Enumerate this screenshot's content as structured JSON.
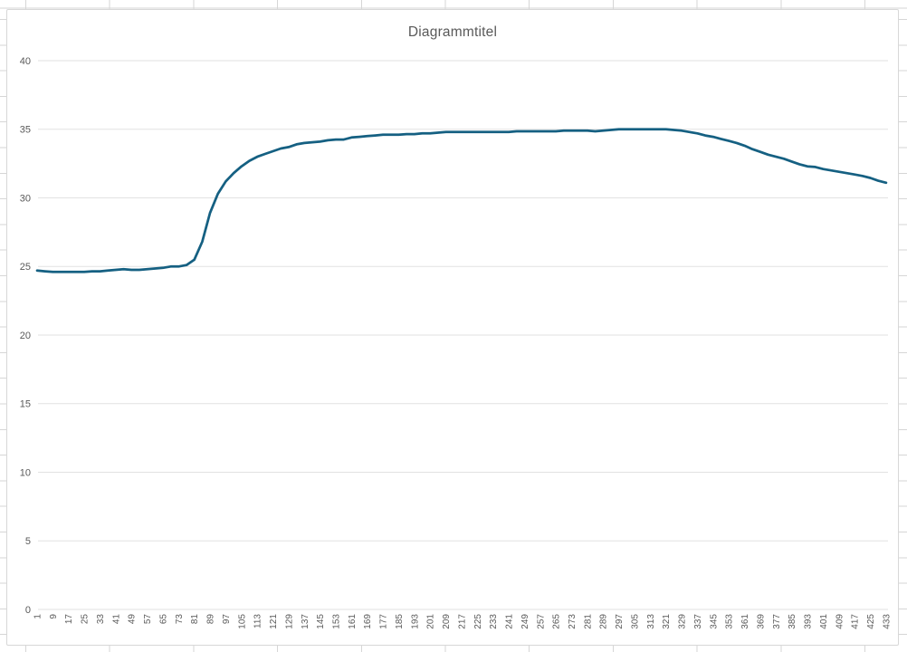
{
  "chart_title": "Diagrammtitel",
  "colors": {
    "line": "#156082",
    "gridline": "#e2e2e2",
    "axis_text": "#595959",
    "title_text": "#595959",
    "chart_border": "#d7d7d7",
    "sheet_grid": "#d6d6d6"
  },
  "chart_data": {
    "type": "line",
    "title": "Diagrammtitel",
    "legend": "none",
    "grid": "horizontal",
    "ylim": [
      0,
      40
    ],
    "xlim": [
      1,
      433
    ],
    "yticks": [
      0,
      5,
      10,
      15,
      20,
      25,
      30,
      35,
      40
    ],
    "xticks": [
      1,
      9,
      17,
      25,
      33,
      41,
      49,
      57,
      65,
      73,
      81,
      89,
      97,
      105,
      113,
      121,
      129,
      137,
      145,
      153,
      161,
      169,
      177,
      185,
      193,
      201,
      209,
      217,
      225,
      233,
      241,
      249,
      257,
      265,
      273,
      281,
      289,
      297,
      305,
      313,
      321,
      329,
      337,
      345,
      353,
      361,
      369,
      377,
      385,
      393,
      401,
      409,
      417,
      425,
      433
    ],
    "x": [
      1,
      5,
      9,
      13,
      17,
      21,
      25,
      29,
      33,
      37,
      41,
      45,
      49,
      53,
      57,
      61,
      65,
      69,
      73,
      77,
      81,
      85,
      89,
      93,
      97,
      101,
      105,
      109,
      113,
      117,
      121,
      125,
      129,
      133,
      137,
      141,
      145,
      149,
      153,
      157,
      161,
      165,
      169,
      173,
      177,
      181,
      185,
      189,
      193,
      197,
      201,
      205,
      209,
      213,
      217,
      221,
      225,
      229,
      233,
      237,
      241,
      245,
      249,
      253,
      257,
      261,
      265,
      269,
      273,
      277,
      281,
      285,
      289,
      293,
      297,
      301,
      305,
      309,
      313,
      317,
      321,
      325,
      329,
      333,
      337,
      341,
      345,
      349,
      353,
      357,
      361,
      365,
      369,
      373,
      377,
      381,
      385,
      389,
      393,
      397,
      401,
      405,
      409,
      413,
      417,
      421,
      425,
      429,
      433
    ],
    "values": [
      24.7,
      24.65,
      24.6,
      24.6,
      24.6,
      24.6,
      24.6,
      24.65,
      24.65,
      24.7,
      24.75,
      24.8,
      24.75,
      24.75,
      24.8,
      24.85,
      24.9,
      25.0,
      25.0,
      25.1,
      25.5,
      26.8,
      28.9,
      30.3,
      31.2,
      31.8,
      32.3,
      32.7,
      33.0,
      33.2,
      33.4,
      33.6,
      33.7,
      33.9,
      34.0,
      34.05,
      34.1,
      34.2,
      34.25,
      34.25,
      34.4,
      34.45,
      34.5,
      34.55,
      34.6,
      34.6,
      34.6,
      34.65,
      34.65,
      34.7,
      34.7,
      34.75,
      34.8,
      34.8,
      34.8,
      34.8,
      34.8,
      34.8,
      34.8,
      34.8,
      34.8,
      34.85,
      34.85,
      34.85,
      34.85,
      34.85,
      34.85,
      34.9,
      34.9,
      34.9,
      34.9,
      34.85,
      34.9,
      34.95,
      35.0,
      35.0,
      35.0,
      35.0,
      35.0,
      35.0,
      35.0,
      34.95,
      34.9,
      34.8,
      34.7,
      34.55,
      34.45,
      34.3,
      34.15,
      34.0,
      33.8,
      33.55,
      33.35,
      33.15,
      33.0,
      32.85,
      32.65,
      32.45,
      32.3,
      32.25,
      32.1,
      32.0,
      31.9,
      31.8,
      31.7,
      31.6,
      31.45,
      31.25,
      31.1
    ]
  }
}
